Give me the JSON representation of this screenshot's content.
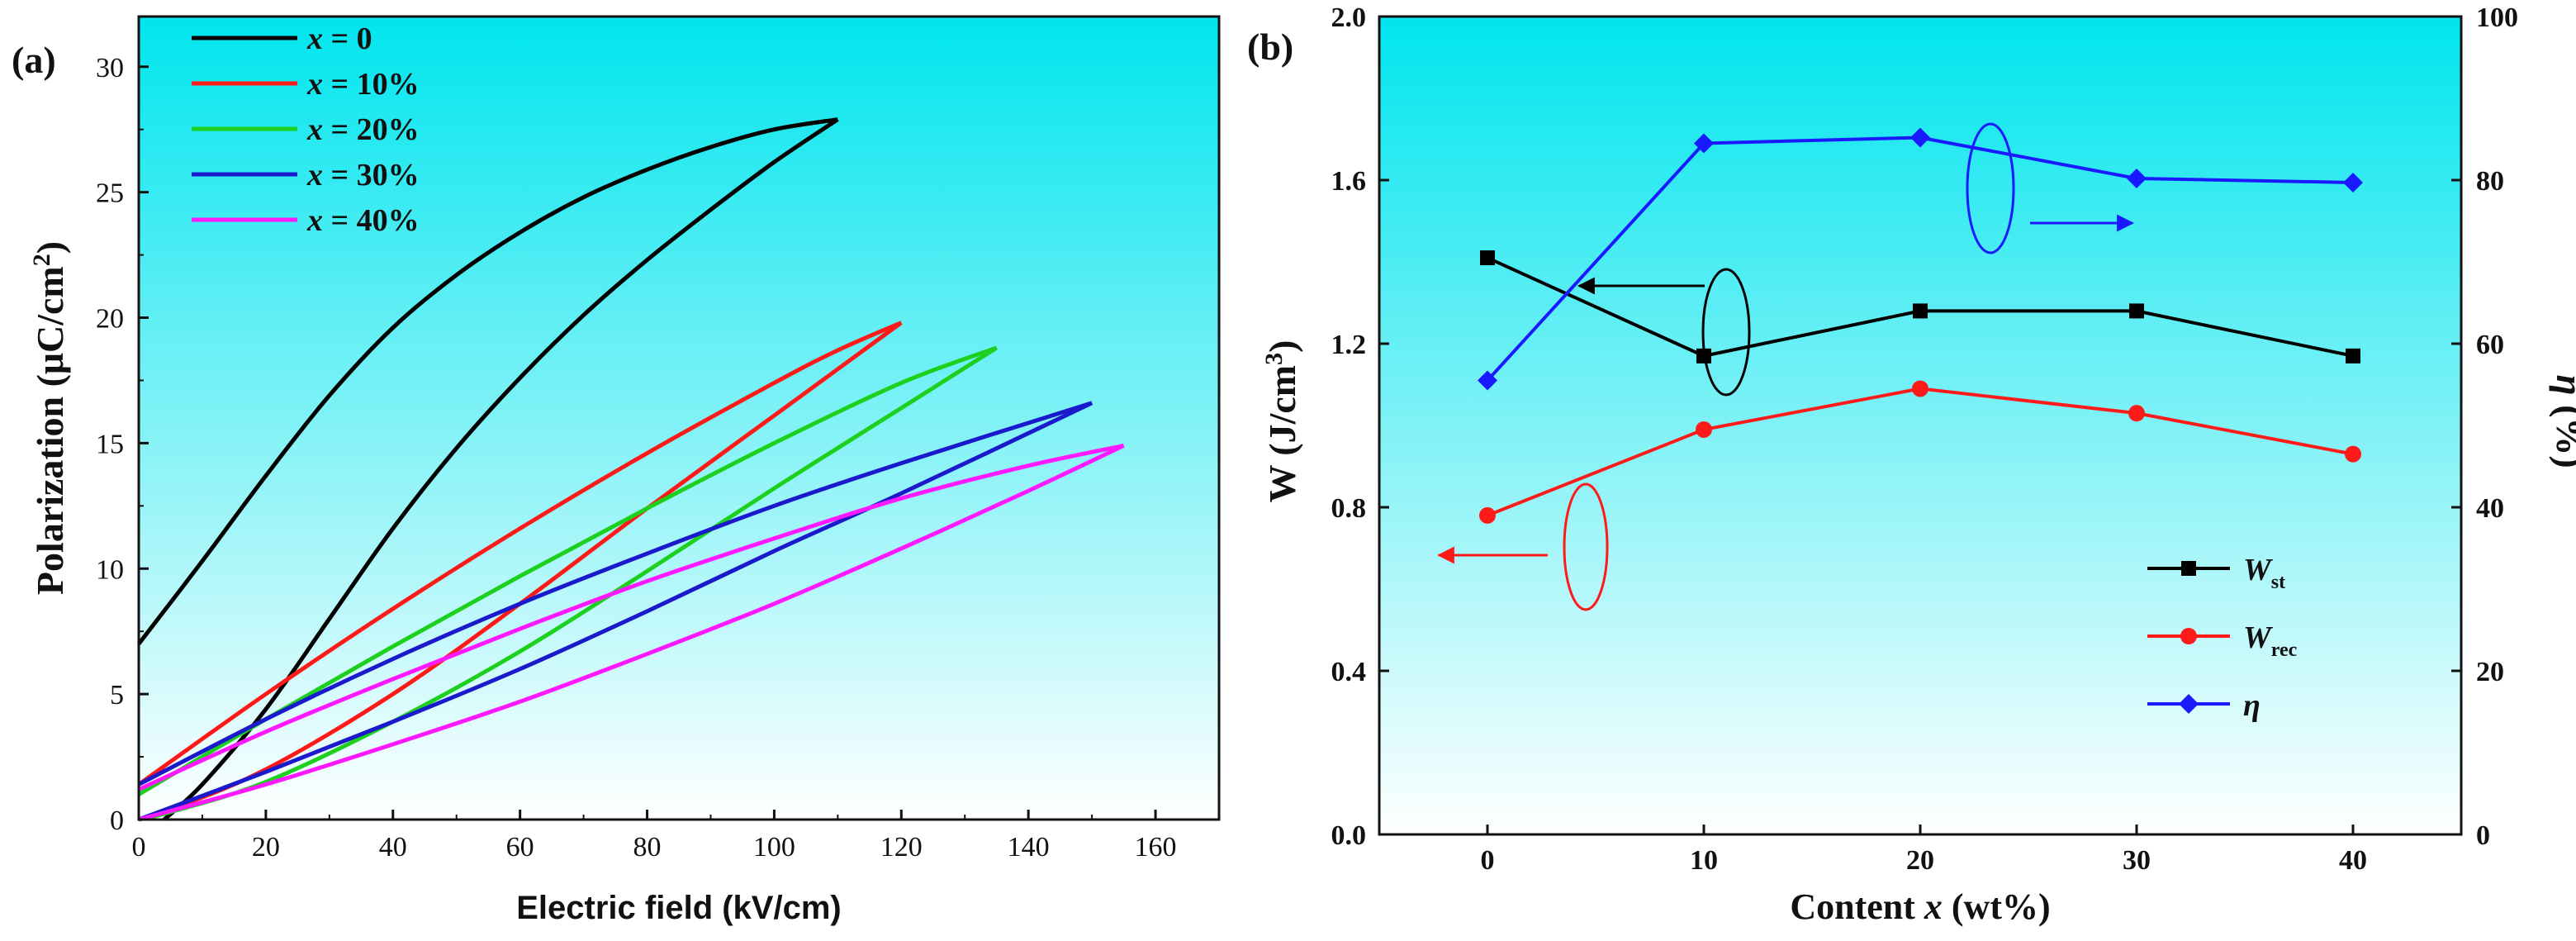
{
  "chart_data": [
    {
      "type": "line",
      "panel_label": "(a)",
      "title": "",
      "xlabel": "Electric field (kV/cm)",
      "ylabel": "Polarization (μC/cm²)",
      "ylabel_parts": {
        "main": "Polarization (μC/cm",
        "sup": "2",
        "close": ")"
      },
      "xlim": [
        0,
        170
      ],
      "ylim": [
        0,
        32
      ],
      "xticks": [
        0,
        20,
        40,
        60,
        80,
        100,
        120,
        140,
        160
      ],
      "yticks": [
        0,
        5,
        10,
        15,
        20,
        25,
        30
      ],
      "background": {
        "top": "#00e5ee",
        "bottom": "#ffffff"
      },
      "legend_position": "top-left",
      "series": [
        {
          "name": "x = 0",
          "legend_var": "x",
          "legend_rest": " = 0",
          "color": "#000000",
          "upper": [
            [
              0,
              7.0
            ],
            [
              10,
              10.3
            ],
            [
              20,
              13.7
            ],
            [
              30,
              16.9
            ],
            [
              40,
              19.6
            ],
            [
              50,
              21.7
            ],
            [
              60,
              23.4
            ],
            [
              70,
              24.8
            ],
            [
              80,
              25.9
            ],
            [
              90,
              26.8
            ],
            [
              100,
              27.5
            ],
            [
              110,
              27.9
            ]
          ],
          "lower": [
            [
              110,
              27.9
            ],
            [
              100,
              26.2
            ],
            [
              90,
              24.3
            ],
            [
              80,
              22.3
            ],
            [
              70,
              20.1
            ],
            [
              60,
              17.6
            ],
            [
              50,
              14.8
            ],
            [
              40,
              11.6
            ],
            [
              30,
              8.0
            ],
            [
              20,
              4.4
            ],
            [
              10,
              1.4
            ],
            [
              4,
              0.0
            ]
          ]
        },
        {
          "name": "x = 10%",
          "legend_var": "x",
          "legend_rest": " = 10%",
          "color": "#ff1a1a",
          "upper": [
            [
              0,
              1.4
            ],
            [
              20,
              5.0
            ],
            [
              40,
              8.4
            ],
            [
              60,
              11.6
            ],
            [
              80,
              14.6
            ],
            [
              100,
              17.4
            ],
            [
              110,
              18.7
            ],
            [
              120,
              19.8
            ]
          ],
          "lower": [
            [
              120,
              19.8
            ],
            [
              100,
              16.1
            ],
            [
              80,
              12.4
            ],
            [
              60,
              8.6
            ],
            [
              40,
              5.0
            ],
            [
              20,
              2.0
            ],
            [
              5,
              0.4
            ],
            [
              0,
              0.0
            ]
          ]
        },
        {
          "name": "x = 20%",
          "legend_var": "x",
          "legend_rest": " = 20%",
          "color": "#1ed01e",
          "upper": [
            [
              0,
              1.0
            ],
            [
              20,
              4.0
            ],
            [
              40,
              6.9
            ],
            [
              60,
              9.7
            ],
            [
              80,
              12.4
            ],
            [
              100,
              15.0
            ],
            [
              120,
              17.4
            ],
            [
              135,
              18.8
            ]
          ],
          "lower": [
            [
              135,
              18.8
            ],
            [
              120,
              16.4
            ],
            [
              100,
              13.2
            ],
            [
              80,
              9.9
            ],
            [
              60,
              6.7
            ],
            [
              40,
              3.9
            ],
            [
              20,
              1.5
            ],
            [
              5,
              0.3
            ],
            [
              0,
              0.0
            ]
          ]
        },
        {
          "name": "x = 30%",
          "legend_var": "x",
          "legend_rest": " = 30%",
          "color": "#1a1acc",
          "upper": [
            [
              0,
              1.4
            ],
            [
              20,
              4.0
            ],
            [
              40,
              6.4
            ],
            [
              60,
              8.6
            ],
            [
              80,
              10.6
            ],
            [
              100,
              12.5
            ],
            [
              120,
              14.2
            ],
            [
              150,
              16.6
            ]
          ],
          "lower": [
            [
              150,
              16.6
            ],
            [
              120,
              13.0
            ],
            [
              100,
              10.7
            ],
            [
              80,
              8.3
            ],
            [
              60,
              6.0
            ],
            [
              40,
              3.9
            ],
            [
              20,
              1.9
            ],
            [
              0,
              0.0
            ]
          ]
        },
        {
          "name": "x = 40%",
          "legend_var": "x",
          "legend_rest": " = 40%",
          "color": "#ff19ff",
          "upper": [
            [
              0,
              1.2
            ],
            [
              20,
              3.5
            ],
            [
              40,
              5.6
            ],
            [
              60,
              7.6
            ],
            [
              80,
              9.5
            ],
            [
              100,
              11.2
            ],
            [
              120,
              12.8
            ],
            [
              140,
              14.1
            ],
            [
              155,
              14.9
            ]
          ],
          "lower": [
            [
              155,
              14.9
            ],
            [
              140,
              13.1
            ],
            [
              120,
              10.8
            ],
            [
              100,
              8.6
            ],
            [
              80,
              6.6
            ],
            [
              60,
              4.7
            ],
            [
              40,
              3.0
            ],
            [
              20,
              1.4
            ],
            [
              0,
              0.0
            ]
          ]
        }
      ]
    },
    {
      "type": "line",
      "panel_label": "(b)",
      "title": "",
      "xlabel": "Content x (wt%)",
      "xlabel_parts": {
        "pre": "Content ",
        "var": "x",
        "post": " (wt%)"
      },
      "ylabel": "W (J/cm³)",
      "ylabel_parts": {
        "main": "W (J/cm",
        "sup": "3",
        "close": ")"
      },
      "ylabel_right": "η (%)",
      "ylabel_right_parts": {
        "var": "η",
        "rest": " (%)"
      },
      "categories": [
        0,
        10,
        20,
        30,
        40
      ],
      "xlim": [
        -5,
        45
      ],
      "xticks": [
        0,
        10,
        20,
        30,
        40
      ],
      "ylim": [
        0.0,
        2.0
      ],
      "yticks": [
        "0.0",
        "0.4",
        "0.8",
        "1.2",
        "1.6",
        "2.0"
      ],
      "ylim_right": [
        0,
        100
      ],
      "yticks_right": [
        0,
        20,
        40,
        60,
        80,
        100
      ],
      "background": {
        "top": "#00e5ee",
        "bottom": "#ffffff"
      },
      "legend_position": "bottom-right",
      "series": [
        {
          "name": "Wst",
          "legend_var": "W",
          "legend_sub": "st",
          "axis": "left",
          "marker": "square",
          "color": "#000000",
          "values": [
            1.41,
            1.17,
            1.28,
            1.28,
            1.17
          ]
        },
        {
          "name": "Wrec",
          "legend_var": "W",
          "legend_sub": "rec",
          "axis": "left",
          "marker": "circle",
          "color": "#ff1a1a",
          "values": [
            0.78,
            0.99,
            1.09,
            1.03,
            0.93
          ]
        },
        {
          "name": "η",
          "legend_var": "η",
          "legend_sub": "",
          "axis": "right",
          "marker": "diamond",
          "color": "#1a1aff",
          "values": [
            55.5,
            84.5,
            85.2,
            80.2,
            79.7
          ]
        }
      ],
      "annotations": [
        {
          "type": "ellipse-arrow",
          "target_series": "η",
          "direction": "right"
        },
        {
          "type": "ellipse-arrow",
          "target_series": "Wst",
          "direction": "left"
        },
        {
          "type": "ellipse-arrow",
          "target_series": "Wrec",
          "direction": "left"
        }
      ]
    }
  ]
}
